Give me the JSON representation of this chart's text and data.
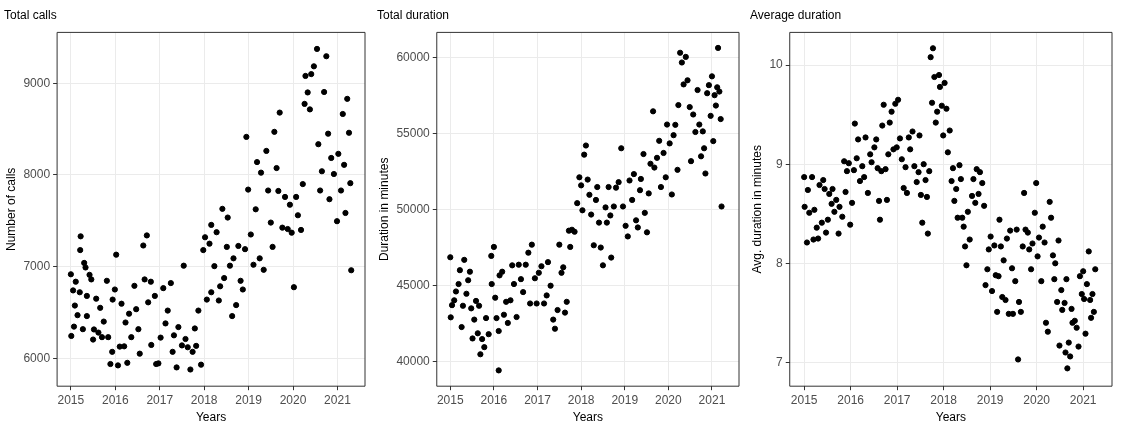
{
  "chart_data": [
    {
      "type": "scatter",
      "title": "Total calls",
      "xlabel": "Years",
      "ylabel": "Number of calls",
      "color": "#000000",
      "marker": "circle",
      "grid": true,
      "xlim": [
        2014.69,
        2021.62
      ],
      "ylim": [
        5695,
        9555
      ],
      "xticks": [
        2015,
        2016,
        2017,
        2018,
        2019,
        2020,
        2021
      ],
      "yticks": [
        6000,
        7000,
        8000,
        9000
      ],
      "x": [
        2015.0,
        2015.01,
        2015.05,
        2015.07,
        2015.11,
        2015.09,
        2015.15,
        2015.2,
        2015.22,
        2015.21,
        2015.27,
        2015.3,
        2015.33,
        2015.36,
        2015.36,
        2015.42,
        2015.46,
        2015.5,
        2015.52,
        2015.57,
        2015.62,
        2015.66,
        2015.7,
        2015.74,
        2015.81,
        2015.84,
        2015.89,
        2015.93,
        2015.94,
        2015.99,
        2016.02,
        2016.06,
        2016.1,
        2016.14,
        2016.2,
        2016.23,
        2016.27,
        2016.31,
        2016.36,
        2016.43,
        2016.47,
        2016.52,
        2016.55,
        2016.63,
        2016.66,
        2016.71,
        2016.74,
        2016.8,
        2016.81,
        2016.89,
        2016.92,
        2016.97,
        2017.02,
        2017.08,
        2017.13,
        2017.18,
        2017.25,
        2017.29,
        2017.32,
        2017.38,
        2017.42,
        2017.5,
        2017.54,
        2017.58,
        2017.63,
        2017.69,
        2017.74,
        2017.79,
        2017.82,
        2017.87,
        2017.93,
        2017.98,
        2018.02,
        2018.06,
        2018.12,
        2018.16,
        2018.16,
        2018.23,
        2018.28,
        2018.33,
        2018.36,
        2018.41,
        2018.45,
        2018.51,
        2018.53,
        2018.58,
        2018.63,
        2018.66,
        2018.72,
        2018.77,
        2018.82,
        2018.87,
        2018.92,
        2018.95,
        2018.99,
        2019.05,
        2019.11,
        2019.16,
        2019.19,
        2019.25,
        2019.28,
        2019.34,
        2019.4,
        2019.44,
        2019.5,
        2019.54,
        2019.58,
        2019.63,
        2019.67,
        2019.7,
        2019.76,
        2019.82,
        2019.88,
        2019.93,
        2019.97,
        2020.02,
        2020.07,
        2020.11,
        2020.18,
        2020.22,
        2020.26,
        2020.28,
        2020.33,
        2020.38,
        2020.41,
        2020.47,
        2020.54,
        2020.57,
        2020.61,
        2020.65,
        2020.7,
        2020.75,
        2020.79,
        2020.82,
        2020.86,
        2020.92,
        2020.99,
        2021.02,
        2021.08,
        2021.12,
        2021.15,
        2021.18,
        2021.22,
        2021.26,
        2021.29,
        2021.31
      ],
      "values": [
        6916,
        6243,
        6740,
        6345,
        6835,
        6575,
        6470,
        6720,
        7330,
        7180,
        6317,
        7040,
        6990,
        6680,
        6460,
        6910,
        6860,
        6204,
        6314,
        6650,
        6280,
        6550,
        6230,
        6400,
        6845,
        6230,
        5937,
        6070,
        6640,
        6750,
        7130,
        5922,
        6127,
        6595,
        6130,
        6390,
        5950,
        6486,
        6230,
        6790,
        6535,
        6317,
        6050,
        7230,
        6860,
        7340,
        6610,
        6835,
        6145,
        6680,
        5937,
        5944,
        6225,
        6765,
        6380,
        6520,
        6820,
        6070,
        6250,
        5900,
        6340,
        6140,
        7010,
        6210,
        6120,
        5877,
        6070,
        6325,
        6135,
        6520,
        5930,
        7180,
        7320,
        6640,
        7250,
        7455,
        6720,
        7005,
        7375,
        6630,
        6785,
        7630,
        6875,
        7215,
        7535,
        7010,
        6460,
        7090,
        6580,
        7225,
        6845,
        6750,
        7190,
        8415,
        7840,
        7350,
        7020,
        7625,
        8140,
        7090,
        8025,
        6965,
        8262,
        7830,
        7480,
        7215,
        8470,
        8075,
        7825,
        8680,
        7425,
        7760,
        7410,
        7675,
        7370,
        6775,
        7760,
        7560,
        7400,
        7900,
        8775,
        9080,
        8900,
        8715,
        9100,
        9185,
        9375,
        8335,
        7830,
        8040,
        8905,
        9295,
        8450,
        7735,
        8185,
        8010,
        7495,
        8230,
        7830,
        8665,
        8110,
        7585,
        8830,
        8460,
        7910,
        6960
      ]
    },
    {
      "type": "scatter",
      "title": "Total duration",
      "xlabel": "Years",
      "ylabel": "Duration in minutes",
      "color": "#000000",
      "marker": "circle",
      "grid": true,
      "xlim": [
        2014.69,
        2021.62
      ],
      "ylim": [
        38390,
        61660
      ],
      "xticks": [
        2015,
        2016,
        2017,
        2018,
        2019,
        2020,
        2021
      ],
      "yticks": [
        40000,
        45000,
        50000,
        55000,
        60000
      ],
      "x": [
        2015.0,
        2015.01,
        2015.04,
        2015.09,
        2015.13,
        2015.19,
        2015.22,
        2015.26,
        2015.29,
        2015.32,
        2015.37,
        2015.41,
        2015.45,
        2015.48,
        2015.51,
        2015.55,
        2015.59,
        2015.63,
        2015.66,
        2015.69,
        2015.73,
        2015.78,
        2015.82,
        2015.88,
        2015.94,
        2015.95,
        2016.0,
        2016.03,
        2016.06,
        2016.11,
        2016.11,
        2016.13,
        2016.19,
        2016.23,
        2016.28,
        2016.32,
        2016.38,
        2016.42,
        2016.46,
        2016.52,
        2016.57,
        2016.62,
        2016.67,
        2016.73,
        2016.79,
        2016.83,
        2016.87,
        2016.94,
        2016.98,
        2017.03,
        2017.09,
        2017.15,
        2017.21,
        2017.24,
        2017.3,
        2017.36,
        2017.4,
        2017.46,
        2017.5,
        2017.55,
        2017.59,
        2017.63,
        2017.67,
        2017.72,
        2017.75,
        2017.79,
        2017.85,
        2017.91,
        2017.96,
        2018.0,
        2018.03,
        2018.07,
        2018.11,
        2018.15,
        2018.19,
        2018.23,
        2018.29,
        2018.34,
        2018.37,
        2018.41,
        2018.45,
        2018.5,
        2018.56,
        2018.59,
        2018.63,
        2018.67,
        2018.69,
        2018.75,
        2018.8,
        2018.86,
        2018.92,
        2018.96,
        2019.02,
        2019.07,
        2019.11,
        2019.17,
        2019.21,
        2019.26,
        2019.3,
        2019.35,
        2019.37,
        2019.43,
        2019.46,
        2019.51,
        2019.55,
        2019.59,
        2019.65,
        2019.68,
        2019.74,
        2019.79,
        2019.83,
        2019.89,
        2019.94,
        2019.97,
        2020.03,
        2020.08,
        2020.12,
        2020.16,
        2020.21,
        2020.23,
        2020.27,
        2020.31,
        2020.35,
        2020.4,
        2020.44,
        2020.49,
        2020.52,
        2020.57,
        2020.62,
        2020.67,
        2020.71,
        2020.75,
        2020.79,
        2020.82,
        2020.85,
        2020.89,
        2020.93,
        2020.97,
        2021.0,
        2021.03,
        2021.06,
        2021.09,
        2021.12,
        2021.14,
        2021.17,
        2021.2,
        2021.22
      ],
      "values": [
        46870,
        42920,
        43720,
        44040,
        44620,
        45110,
        46020,
        42280,
        43680,
        46700,
        44470,
        45360,
        45920,
        43510,
        41530,
        42770,
        44000,
        41870,
        43680,
        40490,
        41490,
        40960,
        42870,
        41810,
        46960,
        45110,
        47550,
        44210,
        42870,
        42020,
        39430,
        45680,
        45920,
        43090,
        43940,
        42550,
        44040,
        46340,
        45110,
        42940,
        46380,
        45430,
        44580,
        46380,
        47170,
        43830,
        47700,
        45490,
        43830,
        45850,
        46280,
        43830,
        44360,
        46550,
        45000,
        42770,
        42170,
        43400,
        47700,
        45850,
        46210,
        43230,
        43940,
        48620,
        47550,
        48680,
        48550,
        50430,
        52130,
        51600,
        49960,
        53620,
        54220,
        51980,
        50980,
        49680,
        47660,
        50640,
        51490,
        49150,
        47510,
        46340,
        50150,
        49150,
        51490,
        49620,
        46850,
        50210,
        51450,
        51810,
        54040,
        50210,
        48940,
        48240,
        51920,
        50640,
        52340,
        49300,
        48830,
        51280,
        52020,
        53660,
        49790,
        48510,
        51070,
        53020,
        56470,
        52770,
        53410,
        54530,
        51490,
        53730,
        52130,
        55600,
        54360,
        51000,
        54900,
        55580,
        52620,
        56880,
        60320,
        59680,
        58240,
        60050,
        58510,
        56750,
        53190,
        56260,
        55110,
        57870,
        55600,
        53510,
        55150,
        54040,
        52380,
        57660,
        58190,
        56170,
        58770,
        54510,
        57530,
        56850,
        58050,
        60640,
        57770,
        55960,
        50210
      ]
    },
    {
      "type": "scatter",
      "title": "Average duration",
      "xlabel": "Years",
      "ylabel": "Avg. duration in minutes",
      "color": "#000000",
      "marker": "circle",
      "grid": true,
      "xlim": [
        2014.69,
        2021.62
      ],
      "ylim": [
        6.76,
        10.33
      ],
      "xticks": [
        2015,
        2016,
        2017,
        2018,
        2019,
        2020,
        2021
      ],
      "yticks": [
        7,
        8,
        9,
        10
      ],
      "x": [
        2015.0,
        2015.01,
        2015.06,
        2015.08,
        2015.11,
        2015.17,
        2015.2,
        2015.22,
        2015.27,
        2015.3,
        2015.33,
        2015.38,
        2015.41,
        2015.44,
        2015.47,
        2015.51,
        2015.54,
        2015.59,
        2015.61,
        2015.65,
        2015.69,
        2015.74,
        2015.76,
        2015.82,
        2015.86,
        2015.89,
        2015.92,
        2015.96,
        2015.99,
        2016.03,
        2016.07,
        2016.09,
        2016.13,
        2016.16,
        2016.2,
        2016.25,
        2016.29,
        2016.32,
        2016.37,
        2016.42,
        2016.45,
        2016.51,
        2016.55,
        2016.58,
        2016.61,
        2016.63,
        2016.66,
        2016.68,
        2016.71,
        2016.75,
        2016.78,
        2016.81,
        2016.84,
        2016.88,
        2016.92,
        2016.96,
        2016.99,
        2017.02,
        2017.06,
        2017.1,
        2017.14,
        2017.18,
        2017.21,
        2017.25,
        2017.28,
        2017.33,
        2017.37,
        2017.42,
        2017.46,
        2017.48,
        2017.51,
        2017.54,
        2017.57,
        2017.61,
        2017.64,
        2017.66,
        2017.69,
        2017.72,
        2017.75,
        2017.77,
        2017.8,
        2017.83,
        2017.86,
        2017.9,
        2017.92,
        2017.96,
        2017.99,
        2018.02,
        2018.06,
        2018.09,
        2018.13,
        2018.17,
        2018.2,
        2018.23,
        2018.27,
        2018.3,
        2018.34,
        2018.37,
        2018.4,
        2018.43,
        2018.46,
        2018.49,
        2018.52,
        2018.56,
        2018.61,
        2018.64,
        2018.68,
        2018.71,
        2018.75,
        2018.78,
        2018.83,
        2018.87,
        2018.9,
        2018.94,
        2018.97,
        2019.01,
        2019.04,
        2019.09,
        2019.12,
        2019.15,
        2019.18,
        2019.2,
        2019.23,
        2019.26,
        2019.29,
        2019.33,
        2019.36,
        2019.4,
        2019.43,
        2019.47,
        2019.49,
        2019.54,
        2019.57,
        2019.6,
        2019.62,
        2019.66,
        2019.7,
        2019.73,
        2019.76,
        2019.81,
        2019.84,
        2019.88,
        2019.91,
        2019.96,
        2019.99,
        2020.02,
        2020.05,
        2020.1,
        2020.13,
        2020.17,
        2020.2,
        2020.24,
        2020.28,
        2020.31,
        2020.35,
        2020.38,
        2020.4,
        2020.44,
        2020.47,
        2020.49,
        2020.53,
        2020.55,
        2020.6,
        2020.62,
        2020.64,
        2020.66,
        2020.69,
        2020.72,
        2020.75,
        2020.77,
        2020.82,
        2020.86,
        2020.9,
        2020.93,
        2020.97,
        2021.0,
        2021.02,
        2021.05,
        2021.08,
        2021.12,
        2021.15,
        2021.17,
        2021.2,
        2021.23,
        2021.26
      ],
      "values": [
        8.87,
        8.57,
        8.21,
        8.74,
        8.51,
        8.87,
        8.24,
        8.54,
        8.36,
        8.25,
        8.79,
        8.41,
        8.84,
        8.75,
        8.31,
        8.44,
        8.7,
        8.6,
        8.75,
        8.52,
        8.64,
        8.3,
        8.57,
        8.47,
        9.03,
        8.72,
        8.93,
        9.01,
        8.39,
        8.61,
        8.94,
        9.41,
        9.06,
        9.25,
        8.83,
        8.98,
        8.87,
        9.27,
        8.71,
        9.1,
        9.02,
        9.17,
        9.25,
        8.96,
        8.63,
        8.44,
        8.93,
        9.39,
        9.6,
        8.95,
        8.64,
        9.1,
        9.42,
        9.53,
        9.15,
        9.61,
        9.17,
        9.65,
        9.26,
        9.05,
        8.76,
        8.97,
        8.71,
        9.27,
        9.15,
        9.33,
        8.98,
        8.82,
        8.92,
        9.29,
        8.69,
        8.41,
        9.0,
        8.84,
        8.67,
        8.3,
        8.93,
        10.08,
        9.62,
        10.17,
        9.88,
        9.42,
        9.53,
        9.9,
        9.78,
        9.59,
        9.29,
        9.82,
        9.56,
        9.12,
        9.34,
        8.83,
        8.96,
        8.63,
        8.75,
        8.46,
        8.99,
        8.85,
        8.46,
        8.37,
        8.17,
        7.98,
        8.52,
        8.24,
        8.68,
        8.85,
        8.61,
        8.95,
        8.7,
        8.92,
        8.81,
        8.58,
        7.78,
        7.94,
        8.14,
        8.27,
        7.72,
        8.18,
        7.88,
        7.51,
        7.87,
        8.44,
        8.17,
        7.66,
        8.03,
        7.63,
        8.25,
        7.49,
        8.33,
        7.95,
        7.49,
        7.82,
        8.34,
        7.03,
        7.61,
        7.51,
        8.17,
        8.71,
        8.34,
        8.31,
        8.14,
        7.94,
        8.2,
        8.51,
        8.81,
        8.07,
        8.26,
        7.82,
        8.37,
        8.21,
        7.4,
        7.31,
        8.62,
        8.46,
        8.08,
        7.84,
        8.0,
        7.61,
        8.23,
        7.17,
        7.73,
        7.53,
        7.6,
        7.1,
        7.84,
        6.94,
        7.2,
        7.06,
        7.54,
        7.4,
        7.42,
        7.35,
        7.16,
        7.87,
        7.69,
        7.92,
        7.64,
        7.29,
        7.79,
        8.12,
        7.63,
        7.45,
        7.69,
        7.51,
        7.94
      ]
    }
  ]
}
